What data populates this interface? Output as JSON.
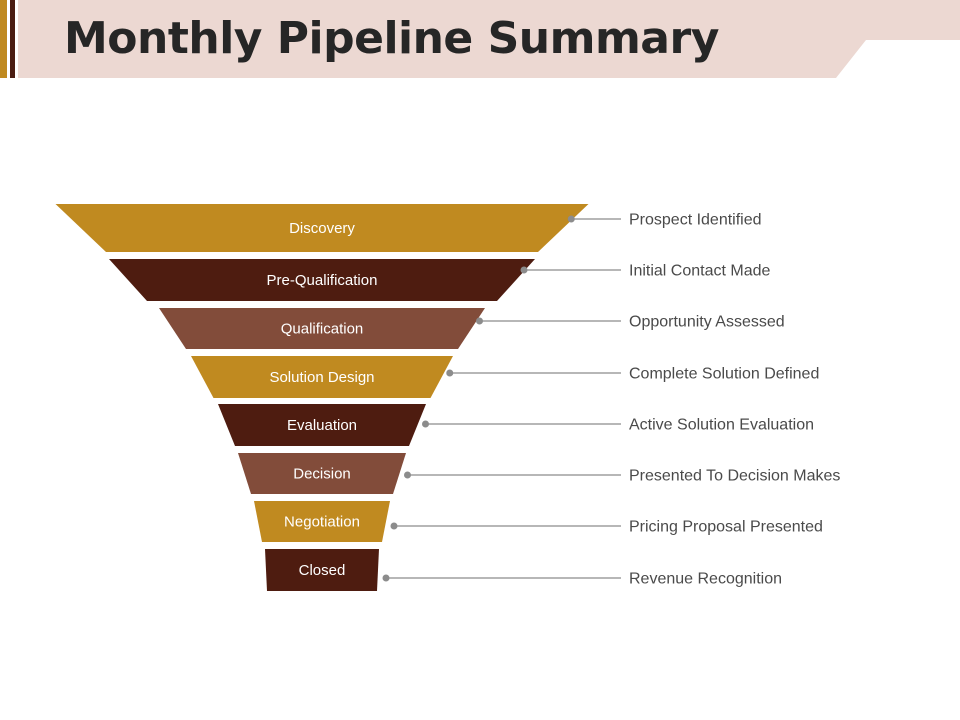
{
  "title": "Monthly Pipeline Summary",
  "colors": {
    "header_band": "#ecd8d2",
    "accent_bar_gold": "#c08a20",
    "accent_bar_dark": "#4a1c12",
    "gold": "#c08a20",
    "dark": "#4e1c10",
    "rust": "#824c3a",
    "leader_line": "#8c8c8c",
    "note_text": "#4a4a4a"
  },
  "funnel": {
    "stages": [
      {
        "label": "Discovery",
        "note": "Prospect Identified",
        "color": "gold"
      },
      {
        "label": "Pre-Qualification",
        "note": "Initial Contact Made",
        "color": "dark"
      },
      {
        "label": "Qualification",
        "note": "Opportunity Assessed",
        "color": "rust"
      },
      {
        "label": "Solution Design",
        "note": "Complete Solution Defined",
        "color": "gold"
      },
      {
        "label": "Evaluation",
        "note": "Active Solution Evaluation",
        "color": "dark"
      },
      {
        "label": "Decision",
        "note": "Presented To Decision Makes",
        "color": "rust"
      },
      {
        "label": "Negotiation",
        "note": "Pricing Proposal Presented",
        "color": "gold"
      },
      {
        "label": "Closed",
        "note": "Revenue Recognition",
        "color": "dark"
      }
    ]
  }
}
